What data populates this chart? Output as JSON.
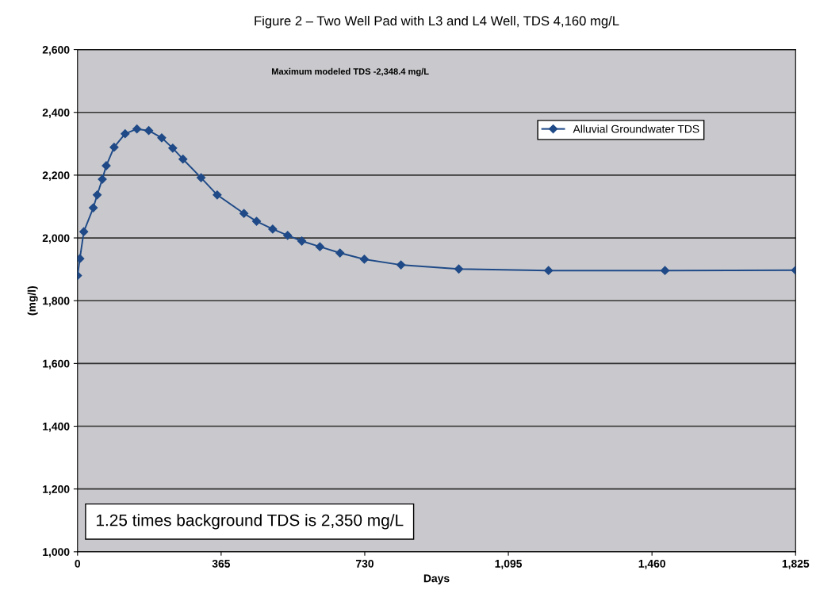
{
  "chart_data": {
    "type": "line",
    "title": "Figure 2 – Two Well Pad with L3 and L4 Well, TDS 4,160 mg/L",
    "xlabel": "Days",
    "ylabel": "(mg/l)",
    "x": [
      0,
      6,
      16,
      40,
      50,
      63,
      73,
      93,
      121,
      151,
      181,
      214,
      242,
      268,
      314,
      355,
      423,
      455,
      496,
      534,
      570,
      616,
      667,
      729,
      822,
      969,
      1197,
      1493,
      1825
    ],
    "series": [
      {
        "name": "Alluvial Groundwater TDS",
        "color": "#1f4a87",
        "values": [
          1880,
          1934,
          2020,
          2096,
          2137,
          2187,
          2230,
          2289,
          2332,
          2347,
          2342,
          2319,
          2286,
          2251,
          2192,
          2137,
          2078,
          2053,
          2028,
          2008,
          1990,
          1972,
          1952,
          1932,
          1914,
          1901,
          1896,
          1896,
          1897
        ]
      }
    ],
    "xlim": [
      0,
      1825
    ],
    "ylim": [
      1000,
      2600
    ],
    "xticks": [
      {
        "value": 0,
        "label": "0"
      },
      {
        "value": 365,
        "label": "365"
      },
      {
        "value": 730,
        "label": "730"
      },
      {
        "value": 1095,
        "label": "1,095"
      },
      {
        "value": 1460,
        "label": "1,460"
      },
      {
        "value": 1825,
        "label": "1,825"
      }
    ],
    "yticks": [
      {
        "value": 1000,
        "label": "1,000"
      },
      {
        "value": 1200,
        "label": "1,200"
      },
      {
        "value": 1400,
        "label": "1,400"
      },
      {
        "value": 1600,
        "label": "1,600"
      },
      {
        "value": 1800,
        "label": "1,800"
      },
      {
        "value": 2000,
        "label": "2,000"
      },
      {
        "value": 2200,
        "label": "2,200"
      },
      {
        "value": 2400,
        "label": "2,400"
      },
      {
        "value": 2600,
        "label": "2,600"
      }
    ],
    "annotations": [
      "Maximum modeled TDS -2,348.4 mg/L",
      "1.25 times background TDS is 2,350 mg/L"
    ],
    "grid": "y",
    "legend": "top right",
    "marker": "diamond",
    "line_style": "solid"
  }
}
